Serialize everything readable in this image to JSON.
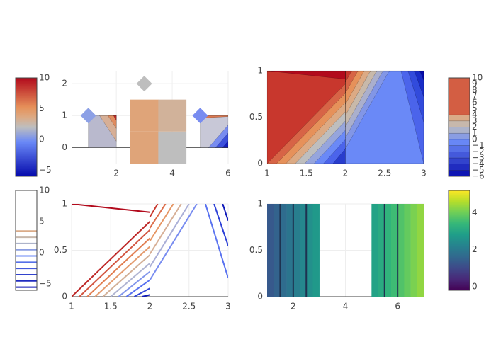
{
  "chart_data": [
    {
      "type": "heatmap",
      "xlim": [
        0.4,
        6
      ],
      "ylim": [
        -0.5,
        2.4
      ],
      "xticks": [
        2,
        4,
        6
      ],
      "yticks": [
        0,
        1,
        2
      ],
      "grid": true,
      "zeroline": true,
      "x_edges": [
        2.5,
        3.5,
        4.5
      ],
      "y_edges": [
        -0.5,
        0.5,
        1.5
      ],
      "z": [
        [
          4,
          2
        ],
        [
          4,
          3
        ]
      ],
      "regions": [
        {
          "x": [
            1,
            2,
            2,
            1
          ],
          "y": [
            0,
            0,
            1,
            1
          ],
          "color": "rgb(185,185,205)"
        },
        {
          "x": [
            1.4,
            2,
            2
          ],
          "y": [
            1,
            1,
            0.2
          ],
          "color": "rgb(215,175,150)"
        },
        {
          "x": [
            1.7,
            2,
            2
          ],
          "y": [
            1,
            1,
            0.6
          ],
          "color": "rgb(225,140,95)"
        },
        {
          "x": [
            1.9,
            2,
            2
          ],
          "y": [
            1,
            1,
            0.85
          ],
          "color": "rgb(190,40,40)"
        },
        {
          "x": [
            5,
            6,
            6,
            5
          ],
          "y": [
            0,
            0,
            1,
            1
          ],
          "color": "rgb(200,200,215)"
        },
        {
          "x": [
            5,
            6,
            6,
            5
          ],
          "y": [
            0.92,
            0.97,
            1,
            1
          ],
          "color": "rgb(220,120,80)"
        },
        {
          "x": [
            5.3,
            6,
            6
          ],
          "y": [
            0,
            0,
            0.7
          ],
          "color": "rgb(120,140,240)"
        },
        {
          "x": [
            5.55,
            6,
            6
          ],
          "y": [
            0,
            0,
            0.45
          ],
          "color": "rgb(60,80,220)"
        },
        {
          "x": [
            5.8,
            6,
            6
          ],
          "y": [
            0,
            0,
            0.2
          ],
          "color": "rgb(20,30,190)"
        }
      ],
      "markers": {
        "x": [
          1,
          3,
          5
        ],
        "y": [
          1,
          2,
          1
        ],
        "colors": [
          "rgb(140,160,230)",
          "rgb(190,190,190)",
          "rgb(120,140,240)"
        ]
      },
      "colorbar": {
        "range": [
          -6,
          10
        ],
        "ticks": [
          {
            "value": -5,
            "label": "−5"
          },
          0,
          5,
          10
        ],
        "colorscale": [
          [
            0,
            "rgb(5,10,172)"
          ],
          [
            0.35,
            "rgb(106,137,247)"
          ],
          [
            0.5,
            "rgb(190,190,190)"
          ],
          [
            0.6,
            "rgb(220,170,132)"
          ],
          [
            0.7,
            "rgb(230,145,90)"
          ],
          [
            1,
            "rgb(178,10,28)"
          ]
        ]
      }
    },
    {
      "type": "contour",
      "xlim": [
        1,
        3
      ],
      "ylim": [
        0,
        1
      ],
      "xticks": [
        1,
        1.5,
        2,
        2.5,
        3
      ],
      "yticks": [
        0,
        0.5,
        1
      ],
      "grid": true,
      "zeroline": true,
      "regions": [
        {
          "x": [
            1,
            2,
            2,
            1
          ],
          "y": [
            0,
            0,
            1,
            1
          ],
          "color": "rgb(40,60,205)"
        },
        {
          "x": [
            1.84,
            2,
            2,
            1,
            1
          ],
          "y": [
            0,
            0.16,
            1,
            1,
            0
          ],
          "color": "rgb(75,100,235)"
        },
        {
          "x": [
            1.72,
            2,
            2,
            1,
            1
          ],
          "y": [
            0,
            0.26,
            1,
            1,
            0
          ],
          "color": "rgb(106,137,247)"
        },
        {
          "x": [
            1.6,
            2,
            2,
            1,
            1
          ],
          "y": [
            0,
            0.36,
            1,
            1,
            0
          ],
          "color": "rgb(150,165,220)"
        },
        {
          "x": [
            1.48,
            2,
            2,
            1,
            1
          ],
          "y": [
            0,
            0.46,
            1,
            1,
            0
          ],
          "color": "rgb(190,190,190)"
        },
        {
          "x": [
            1.36,
            2,
            2,
            1,
            1
          ],
          "y": [
            0,
            0.56,
            1,
            1,
            0
          ],
          "color": "rgb(220,170,132)"
        },
        {
          "x": [
            1.24,
            2,
            2,
            1,
            1
          ],
          "y": [
            0,
            0.66,
            1,
            1,
            0
          ],
          "color": "rgb(230,145,90)"
        },
        {
          "x": [
            1.12,
            2,
            2,
            1,
            1
          ],
          "y": [
            0,
            0.76,
            1,
            1,
            0
          ],
          "color": "rgb(215,100,70)"
        },
        {
          "x": [
            1,
            2,
            2,
            1,
            1
          ],
          "y": [
            0,
            0.86,
            1,
            1,
            0
          ],
          "color": "rgb(200,55,45)"
        },
        {
          "x": [
            1,
            2,
            2
          ],
          "y": [
            1,
            0.91,
            1
          ],
          "color": "rgb(178,10,28)"
        },
        {
          "x": [
            2,
            3,
            3,
            2
          ],
          "y": [
            0,
            0,
            1,
            1
          ],
          "color": "rgb(106,137,247)"
        },
        {
          "x": [
            2,
            2.56,
            2
          ],
          "y": [
            0.16,
            1,
            1
          ],
          "color": "rgb(130,150,230)"
        },
        {
          "x": [
            2,
            2.48,
            2
          ],
          "y": [
            0.28,
            1,
            1
          ],
          "color": "rgb(170,175,205)"
        },
        {
          "x": [
            2,
            2.4,
            2
          ],
          "y": [
            0.4,
            1,
            1
          ],
          "color": "rgb(200,185,170)"
        },
        {
          "x": [
            2,
            2.32,
            2
          ],
          "y": [
            0.52,
            1,
            1
          ],
          "color": "rgb(220,170,132)"
        },
        {
          "x": [
            2,
            2.24,
            2
          ],
          "y": [
            0.64,
            1,
            1
          ],
          "color": "rgb(230,145,90)"
        },
        {
          "x": [
            2,
            2.16,
            2
          ],
          "y": [
            0.76,
            1,
            1
          ],
          "color": "rgb(215,100,70)"
        },
        {
          "x": [
            2,
            2.08,
            2
          ],
          "y": [
            0.88,
            1,
            1
          ],
          "color": "rgb(200,55,45)"
        },
        {
          "x": [
            2.71,
            3,
            3
          ],
          "y": [
            1,
            0,
            1
          ],
          "color": "rgb(75,100,235)"
        },
        {
          "x": [
            2.8,
            3,
            3
          ],
          "y": [
            1,
            0.45,
            1
          ],
          "color": "rgb(50,75,220)"
        },
        {
          "x": [
            2.88,
            3,
            3
          ],
          "y": [
            1,
            0.72,
            1
          ],
          "color": "rgb(25,45,200)"
        },
        {
          "x": [
            2.95,
            3,
            3
          ],
          "y": [
            1,
            0.9,
            1
          ],
          "color": "rgb(5,10,172)"
        }
      ],
      "colorbar": {
        "range": [
          -6,
          10
        ],
        "bands": [
          -6,
          -5,
          -4,
          -3,
          -2,
          -1,
          0,
          1,
          2,
          3,
          4,
          10
        ],
        "ticks": [
          {
            "value": -6,
            "label": "−6"
          },
          {
            "value": -5,
            "label": "−5"
          },
          {
            "value": -4,
            "label": "−4"
          },
          {
            "value": -3,
            "label": "−3"
          },
          {
            "value": -2,
            "label": "−2"
          },
          {
            "value": -1,
            "label": "−1"
          },
          0,
          1,
          2,
          3,
          4,
          5,
          6,
          7,
          8,
          9,
          10
        ],
        "colorscale": [
          [
            0,
            "rgb(5,10,172)"
          ],
          [
            0.35,
            "rgb(106,137,247)"
          ],
          [
            0.5,
            "rgb(190,190,190)"
          ],
          [
            0.6,
            "rgb(220,170,132)"
          ],
          [
            0.7,
            "rgb(230,145,90)"
          ],
          [
            1,
            "rgb(178,10,28)"
          ]
        ]
      }
    },
    {
      "type": "contour",
      "xlim": [
        1,
        3
      ],
      "ylim": [
        0,
        1
      ],
      "xticks": [
        1,
        1.5,
        2,
        2.5,
        3
      ],
      "yticks": [
        0,
        0.5,
        1
      ],
      "grid": true,
      "zeroline": true,
      "lines": [
        {
          "x": [
            1,
            2
          ],
          "y": [
            1,
            0.91
          ],
          "color": "rgb(178,10,28)"
        },
        {
          "x": [
            1,
            2
          ],
          "y": [
            0,
            0.81
          ],
          "color": "rgb(190,40,40)"
        },
        {
          "x": [
            1.1,
            2
          ],
          "y": [
            0,
            0.72
          ],
          "color": "rgb(210,85,65)"
        },
        {
          "x": [
            1.2,
            2
          ],
          "y": [
            0,
            0.63
          ],
          "color": "rgb(225,125,80)"
        },
        {
          "x": [
            1.3,
            2
          ],
          "y": [
            0,
            0.54
          ],
          "color": "rgb(228,155,110)"
        },
        {
          "x": [
            1.4,
            2
          ],
          "y": [
            0,
            0.45
          ],
          "color": "rgb(210,175,150)"
        },
        {
          "x": [
            1.5,
            2
          ],
          "y": [
            0,
            0.36
          ],
          "color": "rgb(175,180,210)"
        },
        {
          "x": [
            1.6,
            2
          ],
          "y": [
            0,
            0.27
          ],
          "color": "rgb(130,150,235)"
        },
        {
          "x": [
            1.7,
            2
          ],
          "y": [
            0,
            0.18
          ],
          "color": "rgb(90,115,240)"
        },
        {
          "x": [
            1.8,
            2
          ],
          "y": [
            0,
            0.09
          ],
          "color": "rgb(50,70,215)"
        },
        {
          "x": [
            1.9,
            2
          ],
          "y": [
            0,
            0.02
          ],
          "color": "rgb(15,25,185)"
        },
        {
          "x": [
            2,
            2.1
          ],
          "y": [
            0.86,
            1
          ],
          "color": "rgb(200,55,45)"
        },
        {
          "x": [
            2,
            2.2
          ],
          "y": [
            0.74,
            1
          ],
          "color": "rgb(220,110,75)"
        },
        {
          "x": [
            2,
            2.3
          ],
          "y": [
            0.6,
            1
          ],
          "color": "rgb(230,150,100)"
        },
        {
          "x": [
            2,
            2.4
          ],
          "y": [
            0.46,
            1
          ],
          "color": "rgb(215,175,150)"
        },
        {
          "x": [
            2,
            2.5
          ],
          "y": [
            0.32,
            1
          ],
          "color": "rgb(170,175,215)"
        },
        {
          "x": [
            2,
            2.6
          ],
          "y": [
            0.18,
            1
          ],
          "color": "rgb(120,140,240)"
        },
        {
          "x": [
            2.71,
            3
          ],
          "y": [
            1,
            0.2
          ],
          "color": "rgb(90,115,240)"
        },
        {
          "x": [
            2.82,
            3
          ],
          "y": [
            1,
            0.55
          ],
          "color": "rgb(45,65,215)"
        },
        {
          "x": [
            2.93,
            3
          ],
          "y": [
            1,
            0.82
          ],
          "color": "rgb(15,25,185)"
        }
      ],
      "colorbar": {
        "range": [
          -6,
          10
        ],
        "levels": [
          -5.5,
          -4.5,
          -3.5,
          -2.5,
          -1.5,
          -0.5,
          0.5,
          1.5,
          2.5,
          3.5
        ],
        "ticks": [
          {
            "value": -5,
            "label": "−5"
          },
          0,
          5,
          10
        ],
        "colorscale": [
          [
            0,
            "rgb(5,10,172)"
          ],
          [
            0.35,
            "rgb(106,137,247)"
          ],
          [
            0.5,
            "rgb(190,190,190)"
          ],
          [
            0.6,
            "rgb(220,170,132)"
          ],
          [
            0.7,
            "rgb(230,145,90)"
          ],
          [
            1,
            "rgb(178,10,28)"
          ]
        ]
      }
    },
    {
      "type": "heatmap",
      "xlim": [
        1,
        7
      ],
      "ylim": [
        0,
        1
      ],
      "xticks": [
        2,
        4,
        6
      ],
      "yticks": [
        0,
        0.5,
        1
      ],
      "grid": true,
      "zeroline": true,
      "x_edges": [
        1,
        1.25,
        1.5,
        1.75,
        2,
        2.25,
        2.5,
        2.75,
        3,
        5,
        5.25,
        5.5,
        5.75,
        6,
        6.25,
        6.5,
        6.75,
        7
      ],
      "y_edges": [
        0,
        1
      ],
      "z": [
        [
          1.3,
          1.5,
          1.7,
          1.9,
          2.1,
          2.3,
          2.5,
          2.7,
          null,
          2.9,
          3.1,
          3.3,
          3.5,
          3.7,
          3.9,
          4.1,
          4.3
        ]
      ],
      "lines": [
        {
          "x": [
            1.5,
            1.5
          ],
          "y": [
            0,
            1
          ],
          "color": "rgb(30,50,80)"
        },
        {
          "x": [
            2,
            2
          ],
          "y": [
            0,
            1
          ],
          "color": "rgb(30,50,80)"
        },
        {
          "x": [
            2.5,
            2.5
          ],
          "y": [
            0,
            1
          ],
          "color": "rgb(30,50,80)"
        },
        {
          "x": [
            5.5,
            5.5
          ],
          "y": [
            0,
            1
          ],
          "color": "rgb(30,50,80)"
        },
        {
          "x": [
            6,
            6
          ],
          "y": [
            0,
            1
          ],
          "color": "rgb(30,50,80)"
        }
      ],
      "colorbar": {
        "range": [
          -0.2,
          5.2
        ],
        "ticks": [
          0,
          2,
          4
        ],
        "colorscale": [
          [
            0,
            "#440154"
          ],
          [
            0.111,
            "#482878"
          ],
          [
            0.222,
            "#3e4989"
          ],
          [
            0.333,
            "#31688e"
          ],
          [
            0.444,
            "#26828e"
          ],
          [
            0.556,
            "#1f9e89"
          ],
          [
            0.667,
            "#35b779"
          ],
          [
            0.778,
            "#6ece58"
          ],
          [
            0.889,
            "#b5de2b"
          ],
          [
            1,
            "#fde725"
          ]
        ]
      }
    }
  ]
}
